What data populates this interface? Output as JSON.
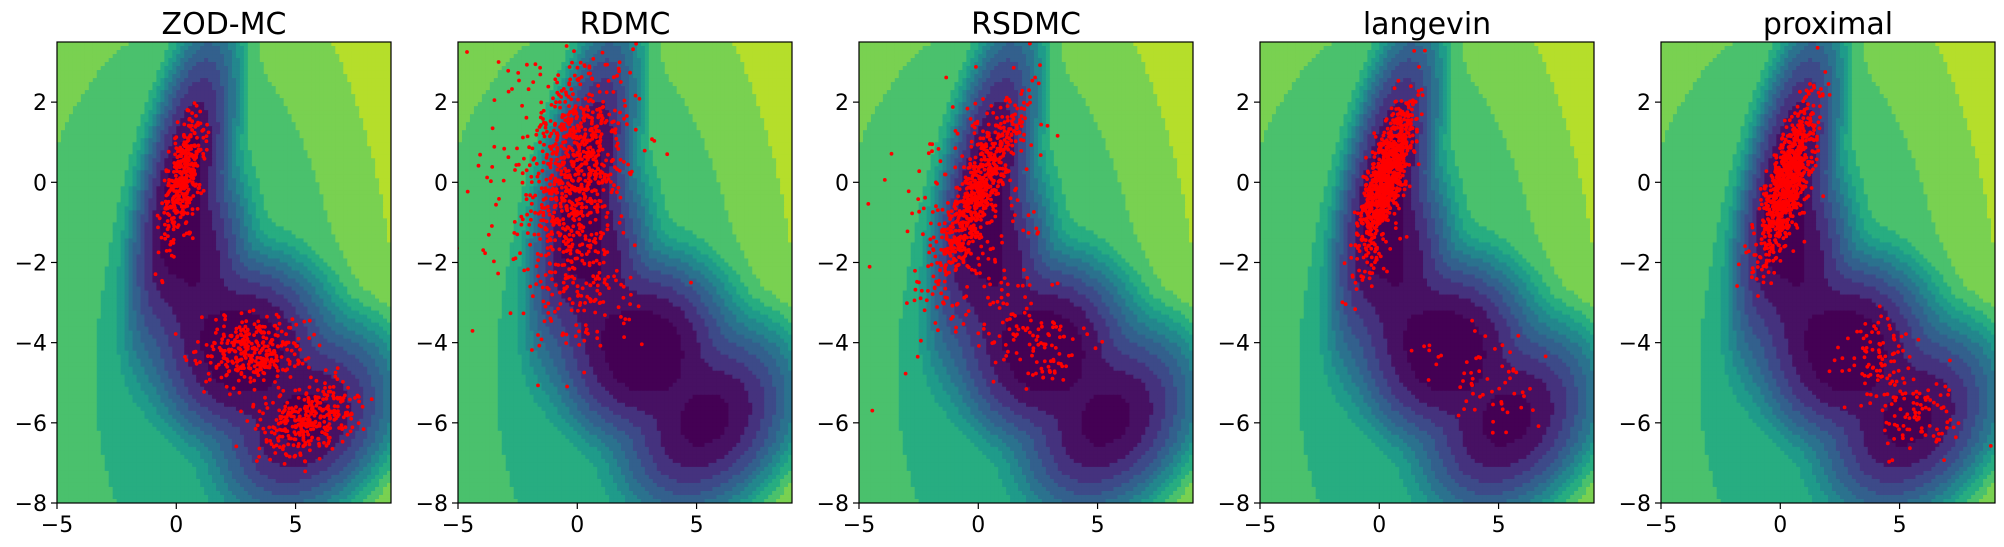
{
  "chart_data": [
    {
      "type": "scatter",
      "title": "ZOD-MC",
      "xlim": [
        -5,
        9
      ],
      "ylim": [
        -8,
        3.5
      ],
      "xticks": [
        -5,
        0,
        5
      ],
      "yticks": [
        -8,
        -6,
        -4,
        -2,
        0,
        2
      ],
      "xtick_labels": [
        "−5",
        "0",
        "5"
      ],
      "ytick_labels": [
        "−8",
        "−6",
        "−4",
        "−2",
        "0",
        "2"
      ],
      "background": "contourf",
      "point_color": "#ff0000",
      "clusters": [
        {
          "cx": 0.3,
          "cy": 0.1,
          "sx": 0.45,
          "sy": 0.75,
          "rho": 0.6,
          "n": 380
        },
        {
          "cx": 3.2,
          "cy": -4.2,
          "sx": 1.1,
          "sy": 0.45,
          "rho": 0.0,
          "n": 330
        },
        {
          "cx": 5.7,
          "cy": -5.9,
          "sx": 1.0,
          "sy": 0.45,
          "rho": 0.35,
          "n": 330
        }
      ]
    },
    {
      "type": "scatter",
      "title": "RDMC",
      "xlim": [
        -5,
        9
      ],
      "ylim": [
        -8,
        3.5
      ],
      "xticks": [
        -5,
        0,
        5
      ],
      "yticks": [
        -8,
        -6,
        -4,
        -2,
        0,
        2
      ],
      "xtick_labels": [
        "−5",
        "0",
        "5"
      ],
      "ytick_labels": [
        "−8",
        "−6",
        "−4",
        "−2",
        "0",
        "2"
      ],
      "background": "contourf",
      "point_color": "#ff0000",
      "clusters": [
        {
          "cx": 0.0,
          "cy": 0.4,
          "sx": 0.9,
          "sy": 1.3,
          "rho": 0.2,
          "n": 650
        },
        {
          "cx": -1.0,
          "cy": 0.0,
          "sx": 1.8,
          "sy": 1.8,
          "rho": 0.0,
          "n": 200
        },
        {
          "cx": 0.2,
          "cy": -2.7,
          "sx": 1.0,
          "sy": 0.8,
          "rho": 0.0,
          "n": 120
        }
      ]
    },
    {
      "type": "scatter",
      "title": "RSDMC",
      "xlim": [
        -5,
        9
      ],
      "ylim": [
        -8,
        3.5
      ],
      "xticks": [
        -5,
        0,
        5
      ],
      "yticks": [
        -8,
        -6,
        -4,
        -2,
        0,
        2
      ],
      "xtick_labels": [
        "−5",
        "0",
        "5"
      ],
      "ytick_labels": [
        "−8",
        "−6",
        "−4",
        "−2",
        "0",
        "2"
      ],
      "background": "contourf",
      "point_color": "#ff0000",
      "clusters": [
        {
          "cx": 0.0,
          "cy": -0.3,
          "sx": 0.9,
          "sy": 1.15,
          "rho": 0.85,
          "n": 650
        },
        {
          "cx": -0.3,
          "cy": -0.5,
          "sx": 1.9,
          "sy": 1.6,
          "rho": 0.2,
          "n": 140
        },
        {
          "cx": 2.8,
          "cy": -4.2,
          "sx": 0.8,
          "sy": 0.5,
          "rho": 0.0,
          "n": 70
        },
        {
          "cx": 0.8,
          "cy": -3.0,
          "sx": 1.0,
          "sy": 0.9,
          "rho": 0.0,
          "n": 70
        }
      ]
    },
    {
      "type": "scatter",
      "title": "langevin",
      "xlim": [
        -5,
        9
      ],
      "ylim": [
        -8,
        3.5
      ],
      "xticks": [
        -5,
        0,
        5
      ],
      "yticks": [
        -8,
        -6,
        -4,
        -2,
        0,
        2
      ],
      "xtick_labels": [
        "−5",
        "0",
        "5"
      ],
      "ytick_labels": [
        "−8",
        "−6",
        "−4",
        "−2",
        "0",
        "2"
      ],
      "background": "contourf",
      "point_color": "#ff0000",
      "clusters": [
        {
          "cx": 0.3,
          "cy": 0.2,
          "sx": 0.55,
          "sy": 0.9,
          "rho": 0.75,
          "n": 850
        },
        {
          "cx": 0.0,
          "cy": -1.0,
          "sx": 0.6,
          "sy": 0.9,
          "rho": 0.5,
          "n": 80
        },
        {
          "cx": 4.5,
          "cy": -4.8,
          "sx": 1.2,
          "sy": 0.7,
          "rho": -0.3,
          "n": 60
        }
      ]
    },
    {
      "type": "scatter",
      "title": "proximal",
      "xlim": [
        -5,
        9
      ],
      "ylim": [
        -8,
        3.5
      ],
      "xticks": [
        -5,
        0,
        5
      ],
      "yticks": [
        -8,
        -6,
        -4,
        -2,
        0,
        2
      ],
      "xtick_labels": [
        "−5",
        "0",
        "5"
      ],
      "ytick_labels": [
        "−8",
        "−6",
        "−4",
        "−2",
        "0",
        "2"
      ],
      "background": "contourf",
      "point_color": "#ff0000",
      "clusters": [
        {
          "cx": 0.3,
          "cy": 0.0,
          "sx": 0.6,
          "sy": 0.95,
          "rho": 0.7,
          "n": 800
        },
        {
          "cx": 4.0,
          "cy": -4.5,
          "sx": 0.8,
          "sy": 0.5,
          "rho": 0.0,
          "n": 90
        },
        {
          "cx": 5.8,
          "cy": -5.8,
          "sx": 0.9,
          "sy": 0.5,
          "rho": 0.0,
          "n": 90
        }
      ]
    }
  ],
  "colors": {
    "contour_levels": [
      "#440154",
      "#471163",
      "#45327e",
      "#3d4a89",
      "#33608d",
      "#2b728e",
      "#23878d",
      "#1f9b8a",
      "#27ad81",
      "#4ac16d",
      "#79d151",
      "#b5de2b"
    ],
    "points": "#ff0000",
    "axes": "#000000"
  }
}
